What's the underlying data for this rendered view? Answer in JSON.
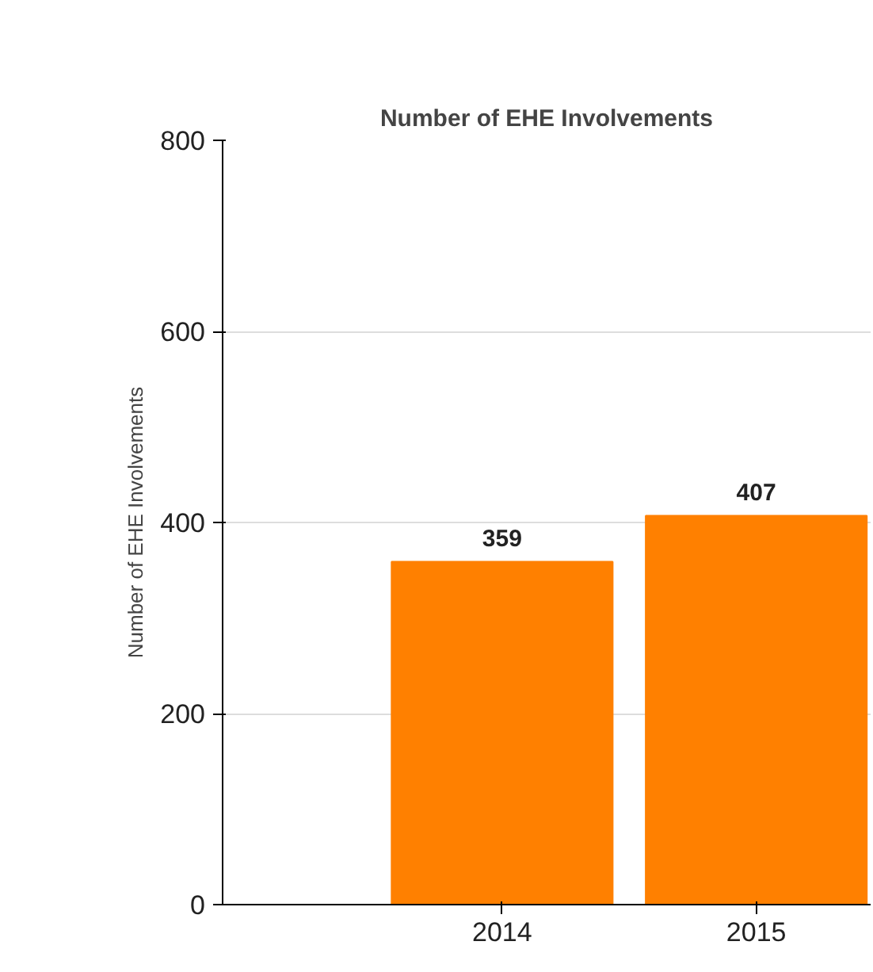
{
  "chart_data": {
    "type": "bar",
    "title": "Number of EHE Involvements",
    "ylabel": "Number of EHE Involvements",
    "categories": [
      "2014",
      "2015"
    ],
    "values": [
      359,
      407
    ],
    "color": "#ff8000",
    "ylim": [
      0,
      800
    ],
    "yticks": [
      0,
      200,
      400,
      600,
      800
    ],
    "grid": "y",
    "data_labels": true
  }
}
